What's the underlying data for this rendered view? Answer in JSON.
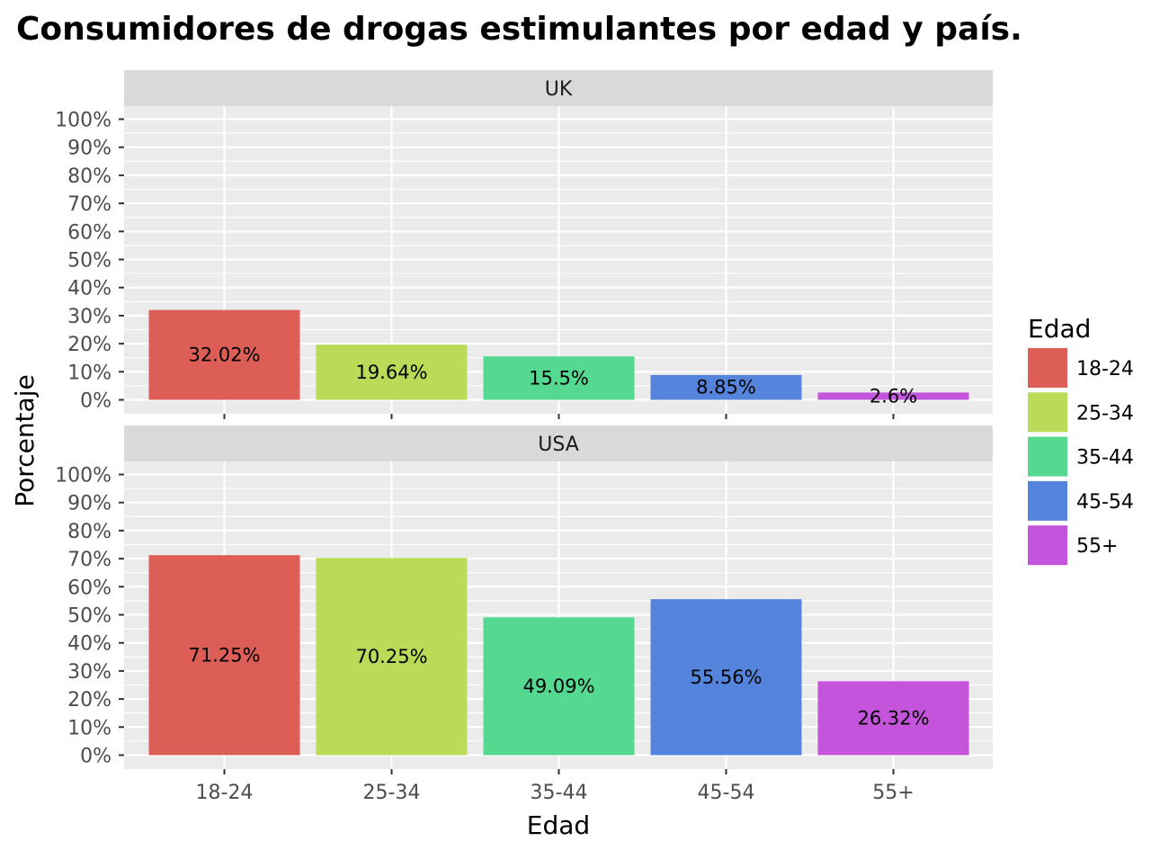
{
  "chart_data": {
    "type": "bar",
    "title": "Consumidores de drogas estimulantes por edad y país.",
    "xlabel": "Edad",
    "ylabel": "Porcentaje",
    "categories": [
      "18-24",
      "25-34",
      "35-44",
      "45-54",
      "55+"
    ],
    "ylim": [
      0,
      100
    ],
    "yticks": [
      "0%",
      "10%",
      "20%",
      "30%",
      "40%",
      "50%",
      "60%",
      "70%",
      "80%",
      "90%",
      "100%"
    ],
    "grid": true,
    "facets": [
      {
        "name": "UK",
        "values": [
          32.02,
          19.64,
          15.5,
          8.85,
          2.6
        ],
        "labels": [
          "32.02%",
          "19.64%",
          "15.5%",
          "8.85%",
          "2.6%"
        ]
      },
      {
        "name": "USA",
        "values": [
          71.25,
          70.25,
          49.09,
          55.56,
          26.32
        ],
        "labels": [
          "71.25%",
          "70.25%",
          "49.09%",
          "55.56%",
          "26.32%"
        ]
      }
    ],
    "legend": {
      "title": "Edad",
      "position": "right",
      "items": [
        "18-24",
        "25-34",
        "35-44",
        "45-54",
        "55+"
      ]
    },
    "colors": [
      "#dc5e57",
      "#badb58",
      "#55d990",
      "#5584dc",
      "#c454dc"
    ]
  }
}
